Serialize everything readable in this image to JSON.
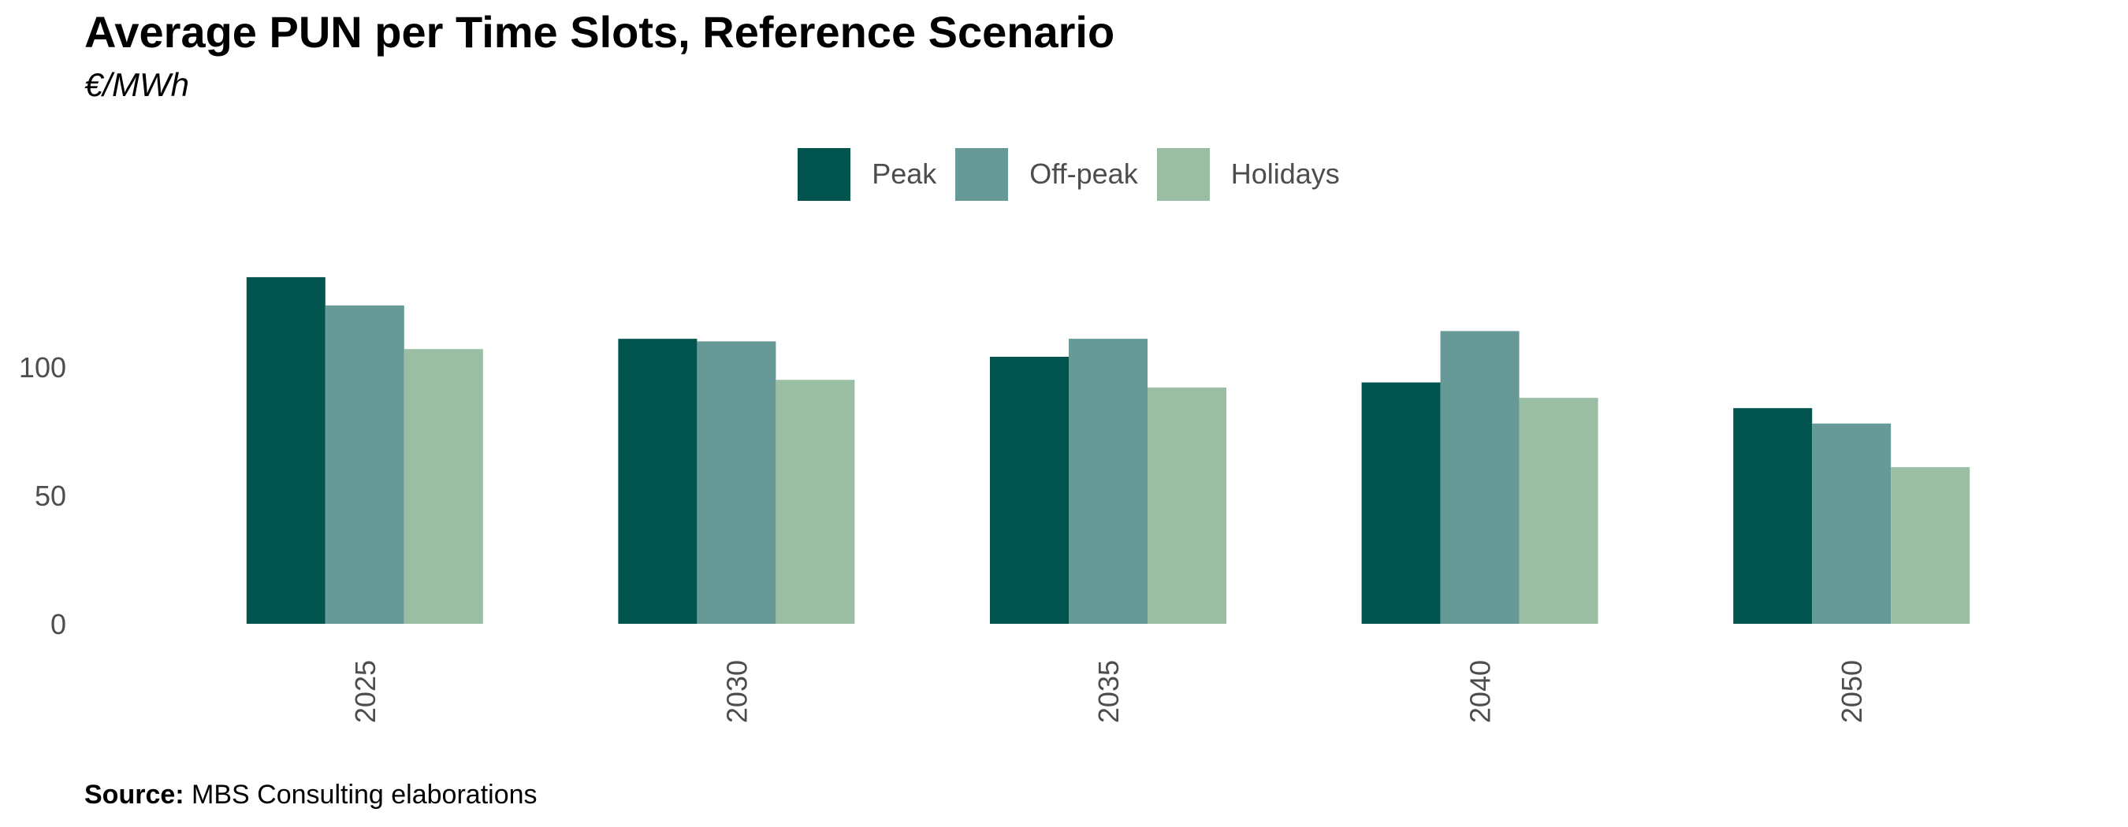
{
  "title": "Average PUN per Time Slots, Reference Scenario",
  "subtitle": "€/MWh",
  "source_label": "Source:",
  "source_text": "MBS Consulting elaborations",
  "chart_data": {
    "type": "bar",
    "title": "Average PUN per Time Slots, Reference Scenario",
    "subtitle": "€/MWh",
    "xlabel": "",
    "ylabel": "",
    "categories": [
      "2025",
      "2030",
      "2035",
      "2040",
      "2050"
    ],
    "series": [
      {
        "name": "Peak",
        "color": "#02554f",
        "values": [
          135,
          111,
          104,
          94,
          84
        ]
      },
      {
        "name": "Off-peak",
        "color": "#679a96",
        "values": [
          124,
          110,
          111,
          114,
          78
        ]
      },
      {
        "name": "Holidays",
        "color": "#9abea3",
        "values": [
          107,
          95,
          92,
          88,
          61
        ]
      }
    ],
    "yticks": [
      0,
      50,
      100
    ],
    "ylim": [
      0,
      145
    ],
    "grid": false,
    "legend_position": "top"
  }
}
